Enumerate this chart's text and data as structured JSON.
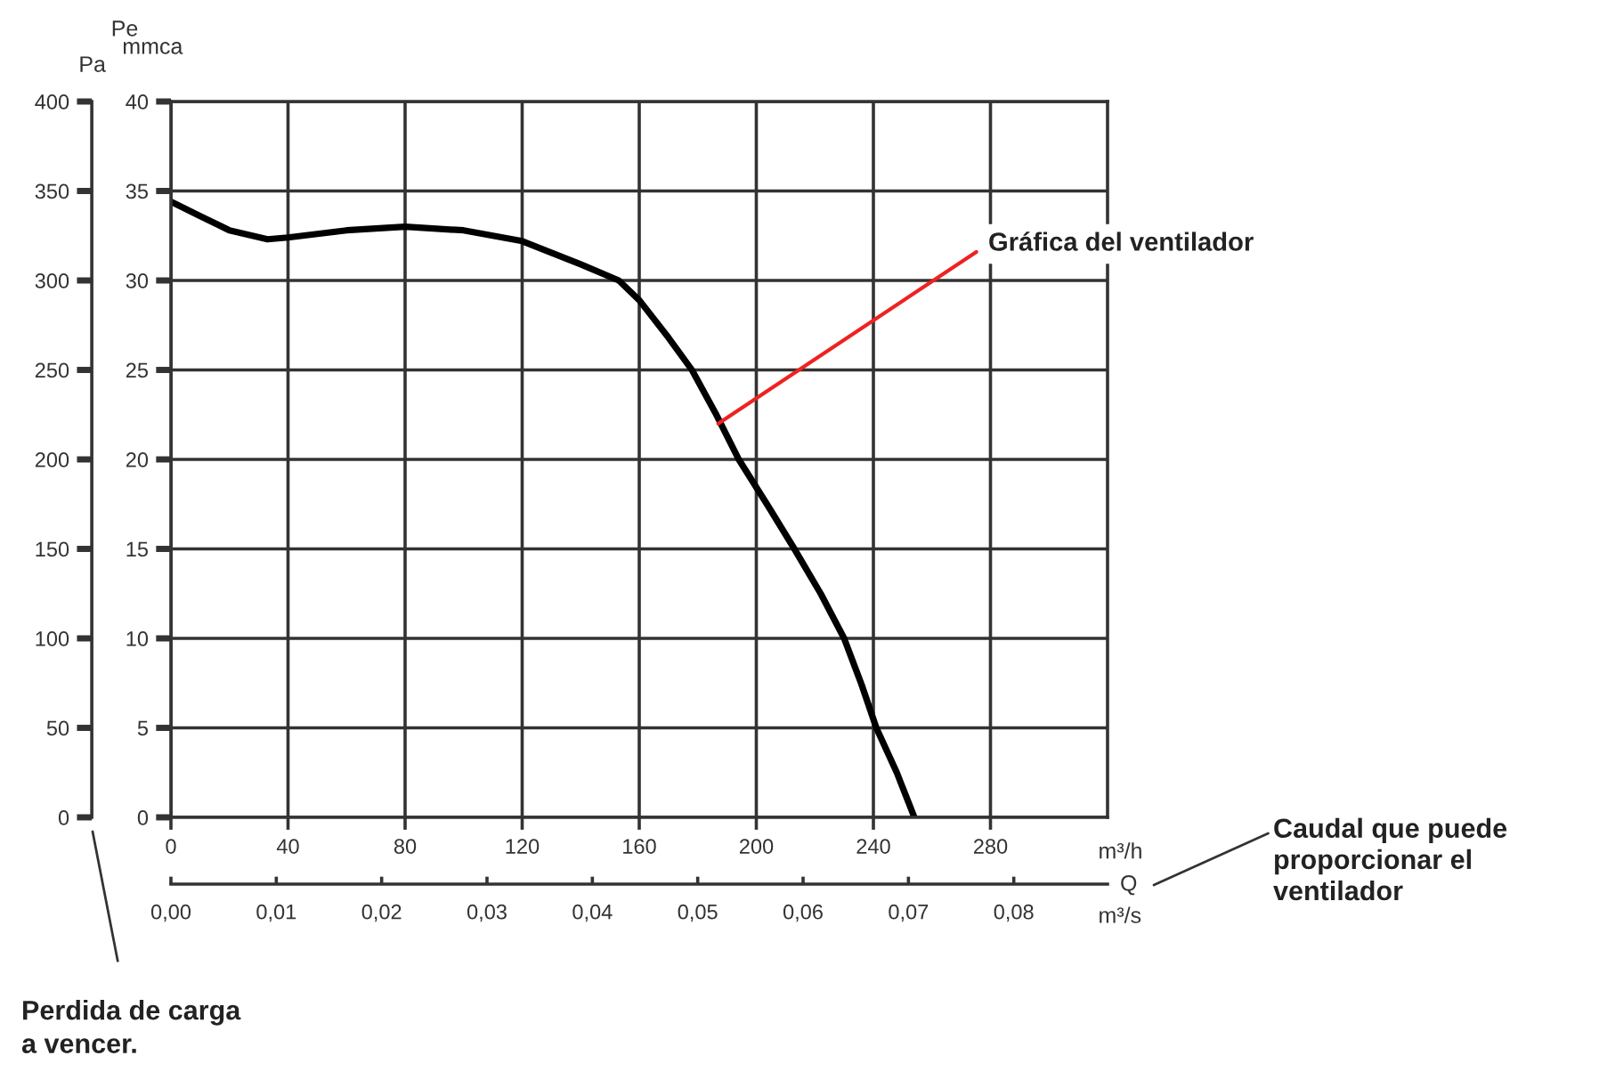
{
  "chart_data": {
    "type": "line",
    "xlabel": "m³/h",
    "ylabel": "mmca",
    "y2label": "Pa",
    "x2label": "m³/s",
    "x": [
      0,
      10,
      20,
      33,
      40,
      60,
      80,
      100,
      120,
      140,
      153,
      160,
      170,
      178,
      186,
      194,
      204,
      213,
      222,
      230,
      236,
      241,
      248,
      254
    ],
    "series": [
      {
        "color": "#000000",
        "values": [
          34.4,
          33.6,
          32.8,
          32.3,
          32.4,
          32.8,
          33.0,
          32.8,
          32.2,
          30.9,
          30.0,
          28.9,
          26.8,
          25.0,
          22.6,
          20.0,
          17.4,
          15.0,
          12.5,
          10.0,
          7.4,
          5.0,
          2.5,
          0.0
        ]
      }
    ],
    "xlim": [
      0,
      320
    ],
    "xticks": [
      0,
      40,
      80,
      120,
      160,
      200,
      240,
      280
    ],
    "ylim": [
      0,
      40
    ],
    "yticks": [
      0,
      5,
      10,
      15,
      20,
      25,
      30,
      35,
      40
    ],
    "y2lim": [
      0,
      400
    ],
    "y2ticks": [
      0,
      50,
      100,
      150,
      200,
      250,
      300,
      350,
      400
    ],
    "x2lim": [
      0,
      0.0889
    ],
    "x2ticks": [
      {
        "value": 0,
        "label": "0,00"
      },
      {
        "value": 0.01,
        "label": "0,01"
      },
      {
        "value": 0.02,
        "label": "0,02"
      },
      {
        "value": 0.03,
        "label": "0,03"
      },
      {
        "value": 0.04,
        "label": "0,04"
      },
      {
        "value": 0.05,
        "label": "0,05"
      },
      {
        "value": 0.06,
        "label": "0,06"
      },
      {
        "value": 0.07,
        "label": "0,07"
      },
      {
        "value": 0.08,
        "label": "0,08"
      }
    ],
    "grid": true,
    "marker": "none",
    "line_style": "solid",
    "annotations": [
      {
        "text": "Gráfica del ventilador",
        "x": 187,
        "y": 22
      },
      "Pe",
      "Q",
      "Perdida de carga\na vencer.",
      "Caudal que puede\nproporcionar el\nventilador"
    ]
  }
}
